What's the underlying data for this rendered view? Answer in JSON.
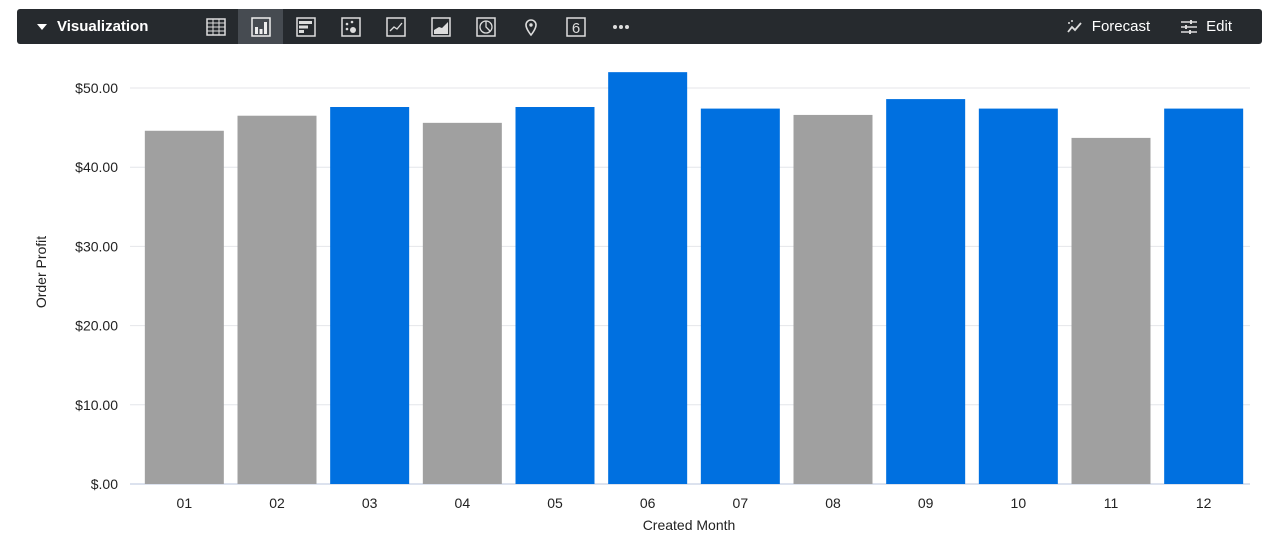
{
  "toolbar": {
    "title": "Visualization",
    "icons": [
      "table-icon",
      "column-chart-icon",
      "bar-chart-icon",
      "scatter-icon",
      "line-chart-icon",
      "area-chart-icon",
      "pie-chart-icon",
      "map-pin-icon",
      "single-value-icon",
      "more-icon"
    ],
    "active": "column-chart-icon",
    "single_value_glyph": "6",
    "forecast_label": "Forecast",
    "edit_label": "Edit"
  },
  "chart_data": {
    "type": "bar",
    "xlabel": "Created Month",
    "ylabel": "Order Profit",
    "categories": [
      "01",
      "02",
      "03",
      "04",
      "05",
      "06",
      "07",
      "08",
      "09",
      "10",
      "11",
      "12"
    ],
    "values": [
      44.6,
      46.5,
      47.6,
      45.6,
      47.6,
      52.0,
      47.4,
      46.6,
      48.6,
      47.4,
      43.7,
      47.4
    ],
    "bar_colors": [
      "#a0a0a0",
      "#a0a0a0",
      "#0070e0",
      "#a0a0a0",
      "#0070e0",
      "#0070e0",
      "#0070e0",
      "#a0a0a0",
      "#0070e0",
      "#0070e0",
      "#a0a0a0",
      "#0070e0"
    ],
    "yticks": [
      "$.00",
      "$10.00",
      "$20.00",
      "$30.00",
      "$40.00",
      "$50.00"
    ],
    "ylim": [
      0,
      50
    ],
    "grid": true
  }
}
